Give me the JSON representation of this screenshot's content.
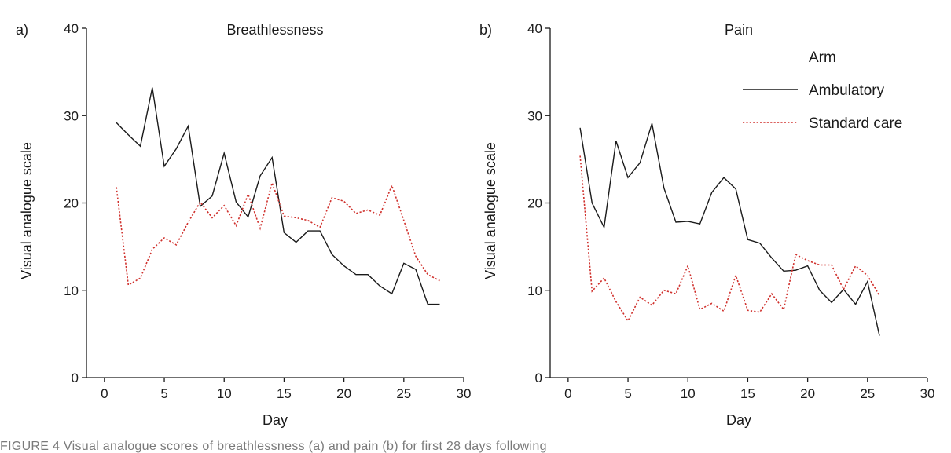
{
  "chart_data": [
    {
      "panel_label": "a)",
      "type": "line",
      "title": "Breathlessness",
      "xlabel": "Day",
      "ylabel": "Visual analogue scale",
      "xlim": [
        -1.5,
        30
      ],
      "ylim": [
        0,
        40
      ],
      "xticks": [
        0,
        5,
        10,
        15,
        20,
        25,
        30
      ],
      "yticks": [
        0,
        10,
        20,
        30,
        40
      ],
      "grid": false,
      "series": [
        {
          "name": "Ambulatory",
          "color": "#1a1a1a",
          "style": "solid",
          "x": [
            1,
            2,
            3,
            4,
            5,
            6,
            7,
            8,
            9,
            10,
            11,
            12,
            13,
            14,
            15,
            16,
            17,
            18,
            19,
            20,
            21,
            22,
            23,
            24,
            25,
            26,
            27,
            28
          ],
          "y": [
            29.2,
            27.8,
            26.5,
            33.2,
            24.2,
            26.2,
            28.8,
            19.6,
            20.8,
            25.7,
            20.1,
            18.4,
            23.1,
            25.2,
            16.6,
            15.5,
            16.8,
            16.8,
            14.1,
            12.8,
            11.8,
            11.8,
            10.5,
            9.6,
            13.1,
            12.4,
            8.4,
            8.4
          ]
        },
        {
          "name": "Standard care",
          "color": "#d0312d",
          "style": "dotted",
          "x": [
            1,
            2,
            3,
            4,
            5,
            6,
            7,
            8,
            9,
            10,
            11,
            12,
            13,
            14,
            15,
            16,
            17,
            18,
            19,
            20,
            21,
            22,
            23,
            24,
            25,
            26,
            27,
            28
          ],
          "y": [
            21.8,
            10.6,
            11.4,
            14.7,
            16.0,
            15.2,
            17.8,
            20.1,
            18.3,
            19.7,
            17.4,
            21.0,
            17.1,
            22.3,
            18.5,
            18.3,
            18.0,
            17.2,
            20.6,
            20.2,
            18.8,
            19.2,
            18.6,
            22.0,
            18.0,
            13.9,
            11.8,
            11.1
          ]
        }
      ]
    },
    {
      "panel_label": "b)",
      "type": "line",
      "title": "Pain",
      "xlabel": "Day",
      "ylabel": "Visual analogue scale",
      "xlim": [
        -1.5,
        30
      ],
      "ylim": [
        0,
        40
      ],
      "xticks": [
        0,
        5,
        10,
        15,
        20,
        25,
        30
      ],
      "yticks": [
        0,
        10,
        20,
        30,
        40
      ],
      "grid": false,
      "legend": {
        "title": "Arm",
        "placement": "top-right"
      },
      "series": [
        {
          "name": "Ambulatory",
          "color": "#1a1a1a",
          "style": "solid",
          "x": [
            1,
            2,
            3,
            4,
            5,
            6,
            7,
            8,
            9,
            10,
            11,
            12,
            13,
            14,
            15,
            16,
            17,
            18,
            19,
            20,
            21,
            22,
            23,
            24,
            25,
            26
          ],
          "y": [
            28.6,
            20.0,
            17.2,
            27.1,
            22.9,
            24.6,
            29.1,
            21.7,
            17.8,
            17.9,
            17.6,
            21.2,
            22.9,
            21.6,
            15.8,
            15.4,
            13.7,
            12.2,
            12.3,
            12.8,
            10.0,
            8.6,
            10.1,
            8.4,
            11.0,
            4.8
          ]
        },
        {
          "name": "Standard care",
          "color": "#d0312d",
          "style": "dotted",
          "x": [
            1,
            2,
            3,
            4,
            5,
            6,
            7,
            8,
            9,
            10,
            11,
            12,
            13,
            14,
            15,
            16,
            17,
            18,
            19,
            20,
            21,
            22,
            23,
            24,
            25,
            26
          ],
          "y": [
            25.4,
            9.9,
            11.4,
            8.7,
            6.5,
            9.2,
            8.3,
            10.0,
            9.6,
            12.8,
            7.8,
            8.5,
            7.6,
            11.7,
            7.7,
            7.5,
            9.6,
            7.8,
            14.1,
            13.4,
            12.9,
            12.9,
            10.1,
            12.8,
            11.7,
            9.4
          ]
        }
      ]
    }
  ],
  "caption": "FIGURE 4 Visual analogue scores of breathlessness (a) and pain (b) for first 28 days following"
}
